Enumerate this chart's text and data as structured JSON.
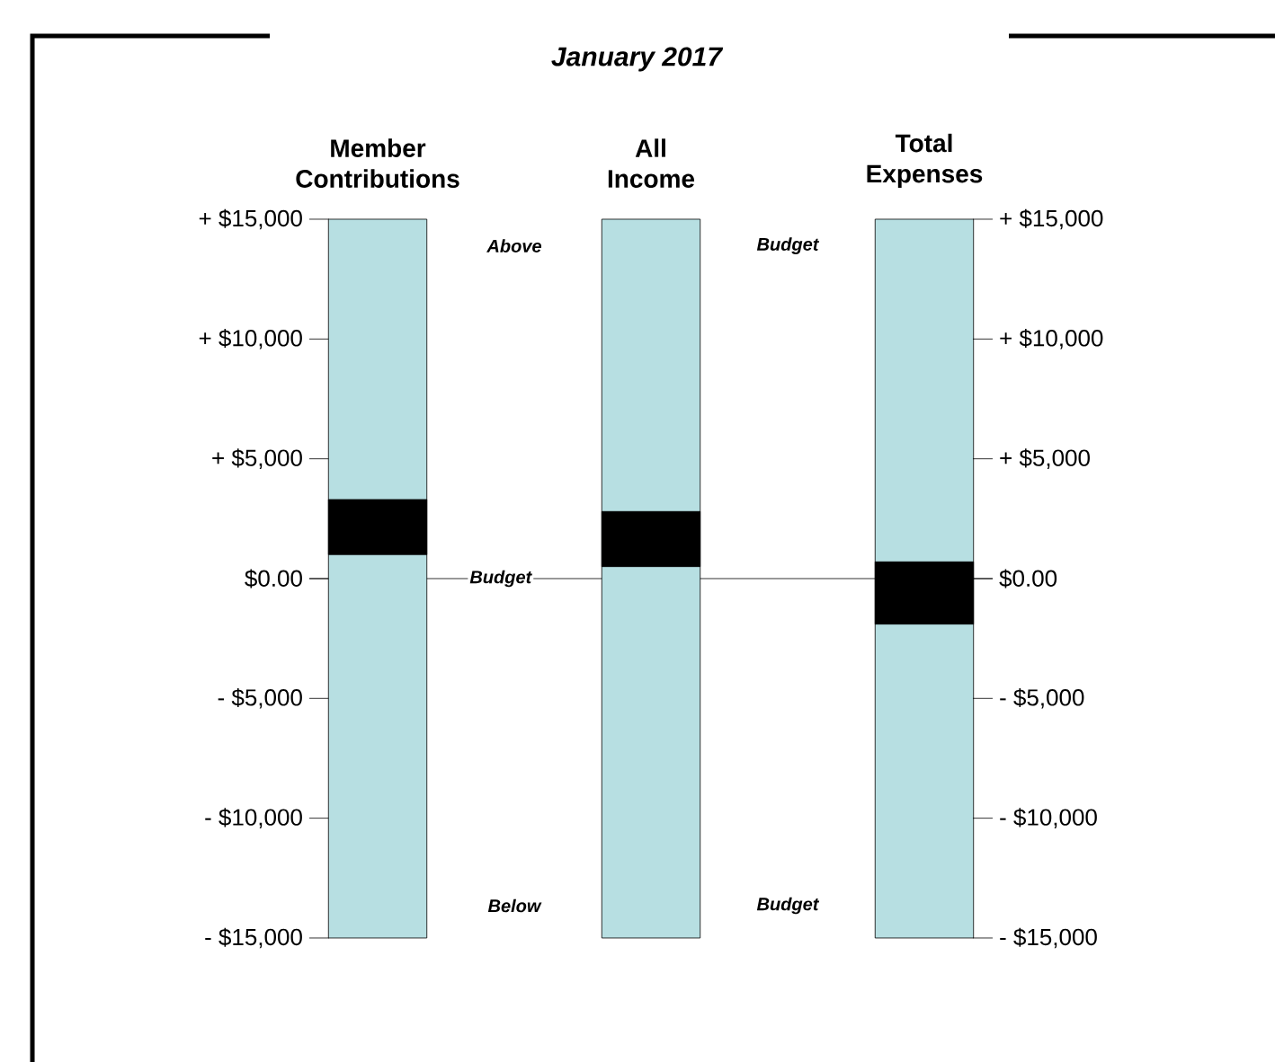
{
  "chart_data": {
    "type": "bar",
    "title": "January 2017",
    "categories": [
      "Member Contributions",
      "All Income",
      "Total Expenses"
    ],
    "series": [
      {
        "color": "#b7dfe2",
        "base": [
          -15000,
          -15000,
          -15000
        ],
        "values": [
          30000,
          30000,
          30000
        ]
      },
      {
        "color": "#000000",
        "base": [
          1000,
          500,
          -1900
        ],
        "values": [
          2300,
          2300,
          2600
        ]
      }
    ],
    "ylim": [
      -15000,
      15000
    ],
    "yticks": [
      {
        "value": 15000,
        "label": "+ $15,000"
      },
      {
        "value": 10000,
        "label": "+ $10,000"
      },
      {
        "value": 5000,
        "label": "+ $5,000"
      },
      {
        "value": 0,
        "label": "$0.00"
      },
      {
        "value": -5000,
        "label": "- $5,000"
      },
      {
        "value": -10000,
        "label": "- $10,000"
      },
      {
        "value": -15000,
        "label": "- $15,000"
      }
    ],
    "y2lim": [
      -15000,
      15000
    ],
    "y2ticks": [
      {
        "value": 15000,
        "label": "+ $15,000"
      },
      {
        "value": 10000,
        "label": "+ $10,000"
      },
      {
        "value": 5000,
        "label": "+ $5,000"
      },
      {
        "value": 0,
        "label": "$0.00"
      },
      {
        "value": -5000,
        "label": "- $5,000"
      },
      {
        "value": -10000,
        "label": "- $10,000"
      },
      {
        "value": -15000,
        "label": "- $15,000"
      }
    ],
    "ref_lines": [
      {
        "axis": "y",
        "value": 0,
        "label": "Budget",
        "color": "#000000"
      }
    ],
    "annotations": [
      "Above",
      "Budget",
      "Below",
      "Budget"
    ],
    "grid": false
  }
}
